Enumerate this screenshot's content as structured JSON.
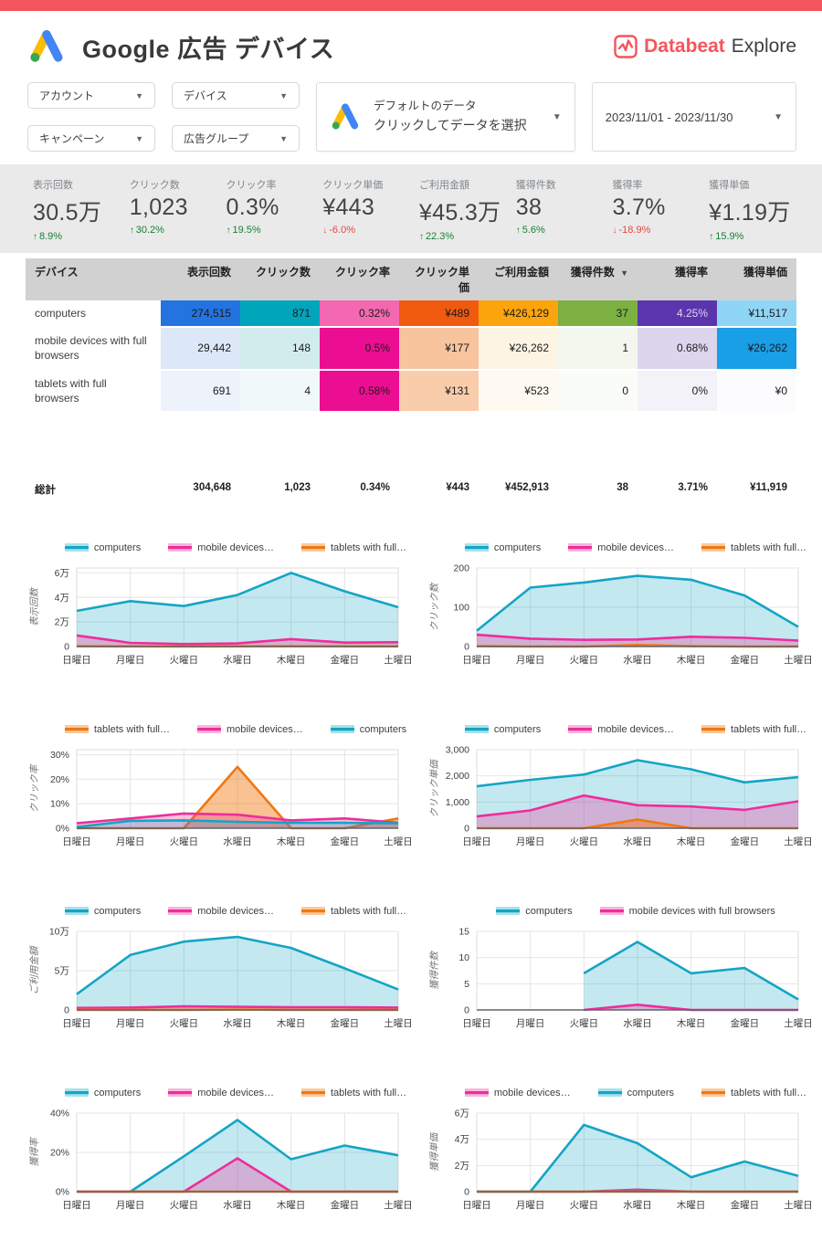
{
  "header": {
    "title": "Google 広告 デバイス",
    "brand_name": "Databeat",
    "brand_suffix": "Explore"
  },
  "filters": {
    "account": "アカウント",
    "device": "デバイス",
    "campaign": "キャンペーン",
    "ad_group": "広告グループ",
    "data_selector_line1": "デフォルトのデータ",
    "data_selector_line2": "クリックしてデータを選択",
    "date_range": "2023/11/01 - 2023/11/30"
  },
  "kpis": [
    {
      "label": "表示回数",
      "value": "30.5万",
      "delta": "8.9%",
      "dir": "up"
    },
    {
      "label": "クリック数",
      "value": "1,023",
      "delta": "30.2%",
      "dir": "up"
    },
    {
      "label": "クリック率",
      "value": "0.3%",
      "delta": "19.5%",
      "dir": "up"
    },
    {
      "label": "クリック単価",
      "value": "¥443",
      "delta": "-6.0%",
      "dir": "down"
    },
    {
      "label": "ご利用金額",
      "value": "¥45.3万",
      "delta": "22.3%",
      "dir": "up"
    },
    {
      "label": "獲得件数",
      "value": "38",
      "delta": "5.6%",
      "dir": "up"
    },
    {
      "label": "獲得率",
      "value": "3.7%",
      "delta": "-18.9%",
      "dir": "down"
    },
    {
      "label": "獲得単価",
      "value": "¥1.19万",
      "delta": "15.9%",
      "dir": "up"
    }
  ],
  "table": {
    "columns": [
      "デバイス",
      "表示回数",
      "クリック数",
      "クリック率",
      "クリック単価",
      "ご利用金額",
      "獲得件数",
      "獲得率",
      "獲得単価"
    ],
    "sort_column_index": 6,
    "rows": [
      {
        "device": "computers",
        "values": [
          "274,515",
          "871",
          "0.32%",
          "¥489",
          "¥426,129",
          "37",
          "4.25%",
          "¥11,517"
        ],
        "bg": [
          "#2374e1",
          "#00a5bc",
          "#f468b1",
          "#f05a0e",
          "#fca40c",
          "#7cb142",
          "#5b35ad",
          "#8fd5f6"
        ],
        "fg": [
          "#1b1b1b",
          "#1b1b1b",
          "#1b1b1b",
          "#1b1b1b",
          "#1b1b1b",
          "#1b1b1b",
          "#ddd6f0",
          "#1b1b1b"
        ]
      },
      {
        "device": "mobile devices with full browsers",
        "values": [
          "29,442",
          "148",
          "0.5%",
          "¥177",
          "¥26,262",
          "1",
          "0.68%",
          "¥26,262"
        ],
        "bg": [
          "#dce7f8",
          "#d2ecee",
          "#ec0e92",
          "#f8c49e",
          "#fdf4e3",
          "#f3f7ee",
          "#ddd5ed",
          "#189fe6"
        ],
        "fg": [
          "#1b1b1b",
          "#1b1b1b",
          "#1b1b1b",
          "#1b1b1b",
          "#1b1b1b",
          "#1b1b1b",
          "#1b1b1b",
          "#1b1b1b"
        ]
      },
      {
        "device": "tablets with full browsers",
        "values": [
          "691",
          "4",
          "0.58%",
          "¥131",
          "¥523",
          "0",
          "0%",
          "¥0"
        ],
        "bg": [
          "#eef2fb",
          "#f0f8fa",
          "#ec0e92",
          "#f9cdac",
          "#fefaf1",
          "#fafcf8",
          "#f4f2f9",
          "#fcfcfe"
        ],
        "fg": [
          "#1b1b1b",
          "#1b1b1b",
          "#1b1b1b",
          "#1b1b1b",
          "#1b1b1b",
          "#1b1b1b",
          "#1b1b1b",
          "#1b1b1b"
        ]
      }
    ],
    "total": {
      "label": "総計",
      "values": [
        "304,648",
        "1,023",
        "0.34%",
        "¥443",
        "¥452,913",
        "38",
        "3.71%",
        "¥11,919"
      ]
    }
  },
  "colors": {
    "topbar": "#f4555c",
    "brand_red": "#f4555c",
    "kpi_up": "#188038",
    "kpi_down": "#e8483f",
    "series": {
      "computers": {
        "stroke": "#14a5c4",
        "fill": "rgba(20,165,196,0.25)",
        "legendFill": "#a8e1eb"
      },
      "mobile": {
        "stroke": "#ee2d9b",
        "fill": "rgba(238,45,155,0.30)",
        "legendFill": "#f9b5dc"
      },
      "tablets": {
        "stroke": "#f0780f",
        "fill": "rgba(240,120,15,0.45)",
        "legendFill": "#f9c9a0"
      }
    }
  },
  "weekdays": [
    "日曜日",
    "月曜日",
    "火曜日",
    "水曜日",
    "木曜日",
    "金曜日",
    "土曜日"
  ],
  "chart_data": [
    {
      "type": "area",
      "ylabel": "表示回数",
      "ymax": 64000,
      "yticks": [
        {
          "v": 0,
          "label": "0"
        },
        {
          "v": 20000,
          "label": "2万"
        },
        {
          "v": 40000,
          "label": "4万"
        },
        {
          "v": 60000,
          "label": "6万"
        }
      ],
      "series": [
        {
          "name": "computers",
          "key": "computers",
          "values": [
            29000,
            37000,
            33000,
            42000,
            60000,
            45000,
            32000
          ]
        },
        {
          "name": "mobile devices…",
          "key": "mobile",
          "values": [
            9000,
            3000,
            2000,
            2500,
            6000,
            3200,
            3500
          ]
        },
        {
          "name": "tablets with full…",
          "key": "tablets",
          "values": [
            250,
            120,
            100,
            150,
            250,
            150,
            150
          ]
        }
      ]
    },
    {
      "type": "area",
      "ylabel": "クリック数",
      "ymax": 200,
      "yticks": [
        {
          "v": 0,
          "label": "0"
        },
        {
          "v": 100,
          "label": "100"
        },
        {
          "v": 200,
          "label": "200"
        }
      ],
      "series": [
        {
          "name": "computers",
          "key": "computers",
          "values": [
            40,
            150,
            163,
            180,
            170,
            130,
            50
          ]
        },
        {
          "name": "mobile devices…",
          "key": "mobile",
          "values": [
            30,
            20,
            17,
            18,
            25,
            22,
            15
          ]
        },
        {
          "name": "tablets with full…",
          "key": "tablets",
          "values": [
            1,
            0,
            0,
            4,
            1,
            0,
            0
          ]
        }
      ]
    },
    {
      "type": "area",
      "ylabel": "クリック率",
      "ymax": 32,
      "yticks": [
        {
          "v": 0,
          "label": "0%"
        },
        {
          "v": 10,
          "label": "10%"
        },
        {
          "v": 20,
          "label": "20%"
        },
        {
          "v": 30,
          "label": "30%"
        }
      ],
      "series": [
        {
          "name": "tablets with full…",
          "key": "tablets",
          "values": [
            0,
            0,
            0,
            25,
            0,
            0,
            4
          ]
        },
        {
          "name": "mobile devices…",
          "key": "mobile",
          "values": [
            2,
            4,
            6,
            5.5,
            3.2,
            4,
            2.2
          ]
        },
        {
          "name": "computers",
          "key": "computers",
          "values": [
            0.5,
            3,
            3.2,
            2.6,
            2.2,
            2.2,
            2
          ]
        }
      ]
    },
    {
      "type": "area",
      "ylabel": "クリック単価",
      "ymax": 3000,
      "yticks": [
        {
          "v": 0,
          "label": "0"
        },
        {
          "v": 1000,
          "label": "1,000"
        },
        {
          "v": 2000,
          "label": "2,000"
        },
        {
          "v": 3000,
          "label": "3,000"
        }
      ],
      "series": [
        {
          "name": "computers",
          "key": "computers",
          "values": [
            1600,
            1850,
            2050,
            2600,
            2250,
            1750,
            1950
          ]
        },
        {
          "name": "mobile devices…",
          "key": "mobile",
          "values": [
            450,
            680,
            1250,
            880,
            830,
            700,
            1030
          ]
        },
        {
          "name": "tablets with full…",
          "key": "tablets",
          "values": [
            0,
            0,
            0,
            330,
            0,
            0,
            0
          ]
        }
      ]
    },
    {
      "type": "area",
      "ylabel": "ご利用金額",
      "ymax": 100000,
      "yticks": [
        {
          "v": 0,
          "label": "0"
        },
        {
          "v": 50000,
          "label": "5万"
        },
        {
          "v": 100000,
          "label": "10万"
        }
      ],
      "series": [
        {
          "name": "computers",
          "key": "computers",
          "values": [
            20000,
            70000,
            87000,
            93000,
            79000,
            53000,
            26000
          ]
        },
        {
          "name": "mobile devices…",
          "key": "mobile",
          "values": [
            2500,
            3000,
            4500,
            4000,
            3500,
            3500,
            3000
          ]
        },
        {
          "name": "tablets with full…",
          "key": "tablets",
          "values": [
            150,
            100,
            100,
            500,
            150,
            100,
            100
          ]
        }
      ]
    },
    {
      "type": "area",
      "ylabel": "獲得件数",
      "ymax": 15,
      "yticks": [
        {
          "v": 0,
          "label": "0"
        },
        {
          "v": 5,
          "label": "5"
        },
        {
          "v": 10,
          "label": "10"
        },
        {
          "v": 15,
          "label": "15"
        }
      ],
      "series": [
        {
          "name": "computers",
          "key": "computers",
          "values": [
            null,
            null,
            7,
            13,
            7,
            8,
            2
          ]
        },
        {
          "name": "mobile devices with full browsers",
          "key": "mobile",
          "values": [
            null,
            null,
            0,
            1,
            0,
            0,
            0
          ]
        }
      ]
    },
    {
      "type": "area",
      "ylabel": "獲得率",
      "ymax": 40,
      "yticks": [
        {
          "v": 0,
          "label": "0%"
        },
        {
          "v": 20,
          "label": "20%"
        },
        {
          "v": 40,
          "label": "40%"
        }
      ],
      "series": [
        {
          "name": "computers",
          "key": "computers",
          "values": [
            0,
            0,
            18,
            36.5,
            16.5,
            23.5,
            18.5
          ]
        },
        {
          "name": "mobile devices…",
          "key": "mobile",
          "values": [
            0,
            0,
            0,
            17,
            0,
            0,
            0
          ]
        },
        {
          "name": "tablets with full…",
          "key": "tablets",
          "values": [
            0,
            0,
            0,
            0,
            0,
            0,
            0
          ]
        }
      ]
    },
    {
      "type": "area",
      "ylabel": "獲得単価",
      "ymax": 60000,
      "yticks": [
        {
          "v": 0,
          "label": "0"
        },
        {
          "v": 20000,
          "label": "2万"
        },
        {
          "v": 40000,
          "label": "4万"
        },
        {
          "v": 60000,
          "label": "6万"
        }
      ],
      "series": [
        {
          "name": "mobile devices…",
          "key": "mobile",
          "values": [
            0,
            0,
            0,
            1500,
            0,
            0,
            0
          ]
        },
        {
          "name": "computers",
          "key": "computers",
          "values": [
            0,
            0,
            51000,
            37000,
            11000,
            23000,
            12000
          ]
        },
        {
          "name": "tablets with full…",
          "key": "tablets",
          "values": [
            0,
            0,
            0,
            0,
            0,
            0,
            0
          ]
        }
      ]
    }
  ]
}
